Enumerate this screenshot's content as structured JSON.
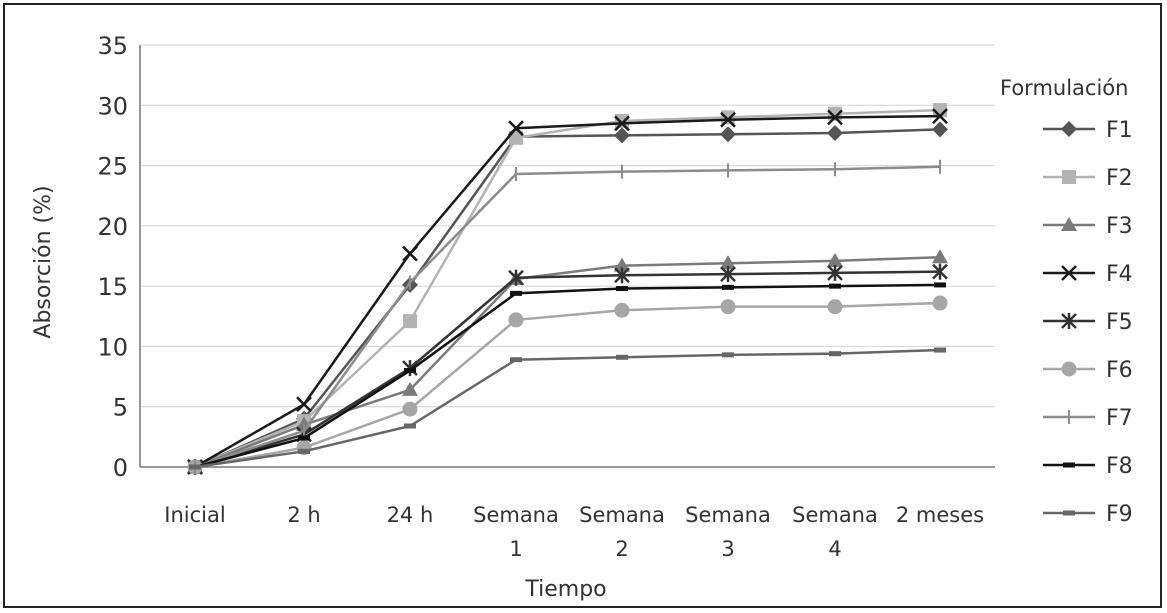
{
  "chart_data": {
    "type": "line",
    "title": "",
    "xlabel": "Tiempo",
    "ylabel": "Absorción (%)",
    "ylim": [
      0,
      35
    ],
    "yticks": [
      0,
      5,
      10,
      15,
      20,
      25,
      30,
      35
    ],
    "grid": true,
    "legend_title": "Formulación",
    "legend_position": "right",
    "categories": [
      [
        "Inicial"
      ],
      [
        "2 h"
      ],
      [
        "24 h"
      ],
      [
        "Semana",
        "1"
      ],
      [
        "Semana",
        "2"
      ],
      [
        "Semana",
        "3"
      ],
      [
        "Semana",
        "4"
      ],
      [
        "2 meses"
      ]
    ],
    "series": [
      {
        "name": "F1",
        "marker": "diamond",
        "color": "#555555",
        "values": [
          0,
          4,
          15.1,
          27.4,
          27.5,
          27.6,
          27.7,
          28.0
        ]
      },
      {
        "name": "F2",
        "marker": "square",
        "color": "#b3b3b3",
        "values": [
          0,
          3.8,
          12.1,
          27.3,
          28.7,
          29.0,
          29.3,
          29.6
        ]
      },
      {
        "name": "F3",
        "marker": "triangle",
        "color": "#7a7a7a",
        "values": [
          0,
          3.5,
          6.4,
          15.6,
          16.7,
          16.9,
          17.1,
          17.4
        ]
      },
      {
        "name": "F4",
        "marker": "x",
        "color": "#1a1a1a",
        "values": [
          0,
          5.2,
          17.7,
          28.1,
          28.5,
          28.8,
          29.0,
          29.1
        ]
      },
      {
        "name": "F5",
        "marker": "star",
        "color": "#333333",
        "values": [
          0,
          2.7,
          8.2,
          15.7,
          15.9,
          16.0,
          16.1,
          16.2
        ]
      },
      {
        "name": "F6",
        "marker": "circle",
        "color": "#a6a6a6",
        "values": [
          0,
          1.6,
          4.8,
          12.2,
          13.0,
          13.3,
          13.3,
          13.6
        ]
      },
      {
        "name": "F7",
        "marker": "plus",
        "color": "#8c8c8c",
        "values": [
          0,
          3.0,
          15.3,
          24.3,
          24.5,
          24.6,
          24.7,
          24.9
        ]
      },
      {
        "name": "F8",
        "marker": "dash",
        "color": "#111111",
        "values": [
          0,
          2.4,
          8.0,
          14.4,
          14.8,
          14.9,
          15.0,
          15.1
        ]
      },
      {
        "name": "F9",
        "marker": "dash",
        "color": "#666666",
        "values": [
          0,
          1.3,
          3.4,
          8.9,
          9.1,
          9.3,
          9.4,
          9.7
        ]
      }
    ]
  }
}
